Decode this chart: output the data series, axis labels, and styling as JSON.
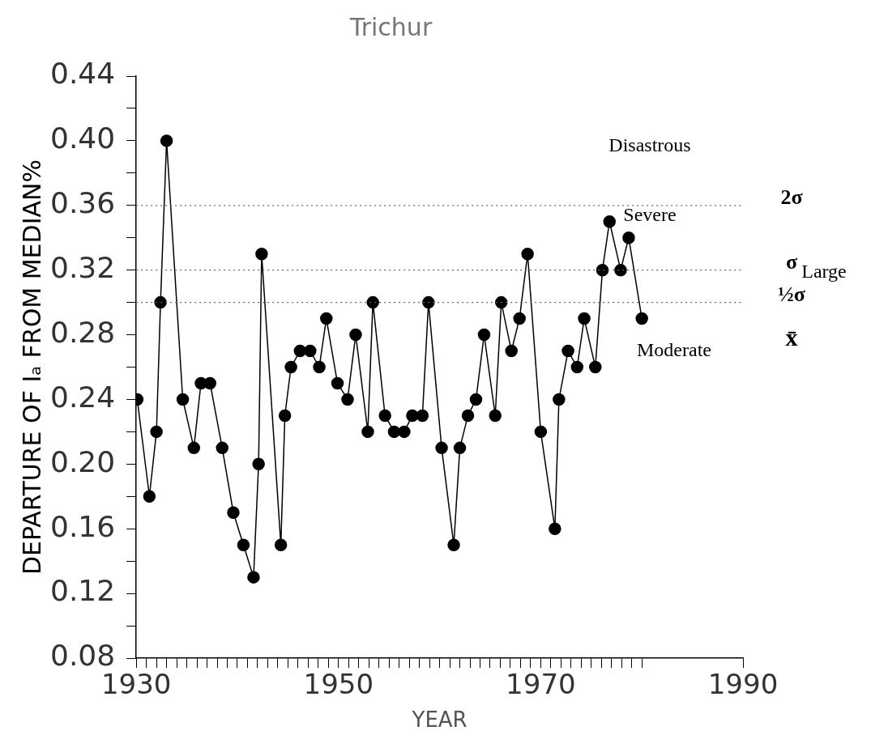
{
  "chart_data": {
    "type": "line",
    "title": "Trichur",
    "xlabel": "YEAR",
    "ylabel": "DEPARTURE OF Iₐ FROM MEDIAN%",
    "x": [
      1930.1,
      1931.3,
      1932.0,
      1932.4,
      1933.0,
      1934.6,
      1935.7,
      1936.4,
      1937.3,
      1938.5,
      1939.6,
      1940.6,
      1941.6,
      1942.1,
      1942.4,
      1944.3,
      1944.7,
      1945.3,
      1946.2,
      1947.2,
      1948.1,
      1948.8,
      1949.9,
      1950.9,
      1951.7,
      1952.9,
      1953.4,
      1954.6,
      1955.5,
      1956.5,
      1957.3,
      1958.3,
      1958.9,
      1960.2,
      1961.4,
      1962.0,
      1962.8,
      1963.6,
      1964.4,
      1965.5,
      1966.1,
      1967.1,
      1967.9,
      1968.7,
      1970.0,
      1971.4,
      1971.8,
      1972.7,
      1973.6,
      1974.3,
      1975.4,
      1976.1,
      1976.8,
      1977.9,
      1978.7,
      1980.0
    ],
    "series": [
      {
        "color": "#000000",
        "values": [
          0.24,
          0.18,
          0.22,
          0.3,
          0.4,
          0.24,
          0.21,
          0.25,
          0.25,
          0.21,
          0.17,
          0.15,
          0.13,
          0.2,
          0.33,
          0.15,
          0.23,
          0.26,
          0.27,
          0.27,
          0.26,
          0.29,
          0.25,
          0.24,
          0.28,
          0.22,
          0.3,
          0.23,
          0.22,
          0.22,
          0.23,
          0.23,
          0.3,
          0.21,
          0.15,
          0.21,
          0.23,
          0.24,
          0.28,
          0.23,
          0.3,
          0.27,
          0.29,
          0.33,
          0.22,
          0.16,
          0.24,
          0.27,
          0.26,
          0.29,
          0.26,
          0.32,
          0.35,
          0.32,
          0.34,
          0.29
        ]
      }
    ],
    "marker": "circle",
    "line_style": "solid",
    "xlim": [
      1930,
      1990
    ],
    "xticks": [
      1930,
      {
        "value": 1931,
        "label": null
      },
      {
        "value": 1932,
        "label": null
      },
      {
        "value": 1933,
        "label": null
      },
      {
        "value": 1934,
        "label": null
      },
      {
        "value": 1935,
        "label": null
      },
      {
        "value": 1936,
        "label": null
      },
      {
        "value": 1937,
        "label": null
      },
      {
        "value": 1938,
        "label": null
      },
      {
        "value": 1939,
        "label": null
      },
      {
        "value": 1940,
        "label": null
      },
      {
        "value": 1941,
        "label": null
      },
      {
        "value": 1942,
        "label": null
      },
      {
        "value": 1943,
        "label": null
      },
      {
        "value": 1944,
        "label": null
      },
      {
        "value": 1945,
        "label": null
      },
      {
        "value": 1946,
        "label": null
      },
      {
        "value": 1947,
        "label": null
      },
      {
        "value": 1948,
        "label": null
      },
      {
        "value": 1949,
        "label": null
      },
      1950,
      {
        "value": 1951,
        "label": null
      },
      {
        "value": 1952,
        "label": null
      },
      {
        "value": 1953,
        "label": null
      },
      {
        "value": 1954,
        "label": null
      },
      {
        "value": 1955,
        "label": null
      },
      {
        "value": 1956,
        "label": null
      },
      {
        "value": 1957,
        "label": null
      },
      {
        "value": 1958,
        "label": null
      },
      {
        "value": 1959,
        "label": null
      },
      {
        "value": 1960,
        "label": null
      },
      {
        "value": 1961,
        "label": null
      },
      {
        "value": 1962,
        "label": null
      },
      {
        "value": 1963,
        "label": null
      },
      {
        "value": 1964,
        "label": null
      },
      {
        "value": 1965,
        "label": null
      },
      {
        "value": 1966,
        "label": null
      },
      {
        "value": 1967,
        "label": null
      },
      {
        "value": 1968,
        "label": null
      },
      {
        "value": 1969,
        "label": null
      },
      1970,
      {
        "value": 1971,
        "label": null
      },
      {
        "value": 1972,
        "label": null
      },
      {
        "value": 1973,
        "label": null
      },
      {
        "value": 1974,
        "label": null
      },
      {
        "value": 1975,
        "label": null
      },
      {
        "value": 1976,
        "label": null
      },
      {
        "value": 1977,
        "label": null
      },
      {
        "value": 1978,
        "label": null
      },
      {
        "value": 1979,
        "label": null
      },
      {
        "value": 1980,
        "label": null
      },
      1990
    ],
    "ylim": [
      0.08,
      0.44
    ],
    "yticks": [
      {
        "value": 0.08,
        "label": "0.08"
      },
      {
        "value": 0.1,
        "label": null
      },
      {
        "value": 0.12,
        "label": "0.12"
      },
      {
        "value": 0.14,
        "label": null
      },
      {
        "value": 0.16,
        "label": "0.16"
      },
      {
        "value": 0.18,
        "label": null
      },
      {
        "value": 0.2,
        "label": "0.20"
      },
      {
        "value": 0.22,
        "label": null
      },
      {
        "value": 0.24,
        "label": "0.24"
      },
      {
        "value": 0.26,
        "label": null
      },
      {
        "value": 0.28,
        "label": "0.28"
      },
      {
        "value": 0.3,
        "label": null
      },
      {
        "value": 0.32,
        "label": "0.32"
      },
      {
        "value": 0.34,
        "label": null
      },
      {
        "value": 0.36,
        "label": "0.36"
      },
      {
        "value": 0.38,
        "label": null
      },
      {
        "value": 0.4,
        "label": "0.40"
      },
      {
        "value": 0.42,
        "label": null
      },
      {
        "value": 0.44,
        "label": "0.44"
      }
    ],
    "ref_lines": [
      {
        "axis": "y",
        "value": 0.36,
        "label": "2σ",
        "color": "#666666",
        "line_style": "dotted"
      },
      {
        "axis": "y",
        "value": 0.32,
        "label": "σ",
        "color": "#666666",
        "line_style": "dotted"
      },
      {
        "axis": "y",
        "value": 0.3,
        "label": "½σ",
        "color": "#666666",
        "line_style": "dotted"
      }
    ],
    "annotations": [
      "Disastrous",
      "Severe",
      "Large",
      "Moderate",
      "x̄"
    ],
    "grid": false,
    "legend": false
  }
}
